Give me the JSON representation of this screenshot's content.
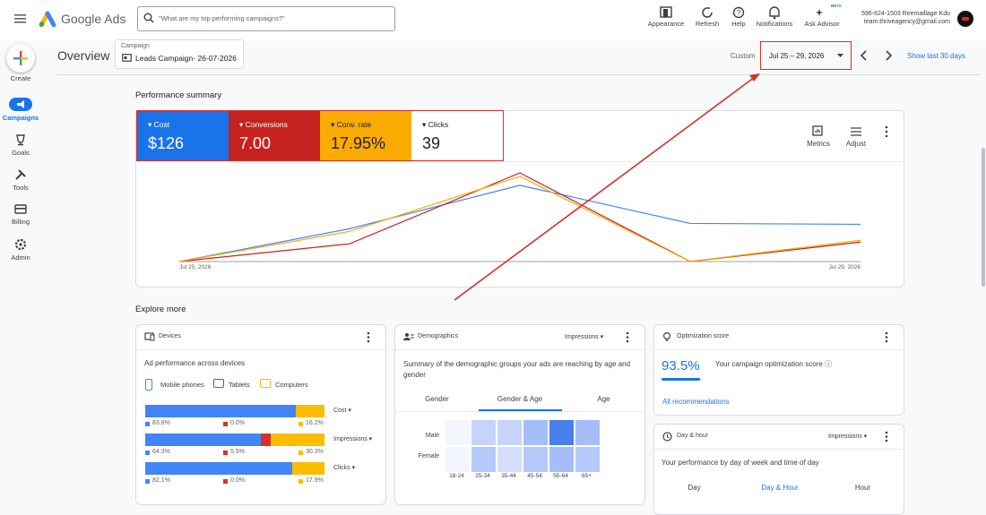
{
  "header": {
    "product": "Google Ads",
    "search_placeholder": "\"What are my top performing campaigns?\"",
    "tools": [
      "Appearance",
      "Refresh",
      "Help",
      "Notifications",
      "Ask Advisor"
    ],
    "beta": "BETA",
    "account_name": "596-624-1503 Reemaillage Kdo",
    "account_email": "team.thriveagency@gmail.com"
  },
  "sidebar": [
    "Create",
    "Campaigns",
    "Goals",
    "Tools",
    "Billing",
    "Admin"
  ],
  "toolbar": {
    "page_title": "Overview",
    "campaign_label": "Campaign",
    "campaign_name": "Leads Campaign- 26-07-2026",
    "range_type": "Custom",
    "date_range": "Jul 25 – 29, 2026",
    "show_last": "Show last 30 days"
  },
  "performance_summary": {
    "title": "Performance summary",
    "metrics": [
      {
        "name": "Cost",
        "value": "$126"
      },
      {
        "name": "Conversions",
        "value": "7.00"
      },
      {
        "name": "Conv. rate",
        "value": "17.95%"
      },
      {
        "name": "Clicks",
        "value": "39"
      }
    ],
    "actions": [
      "Metrics",
      "Adjust"
    ],
    "chart": {
      "x_labels": [
        "Jul 25, 2026",
        "Jul 29, 2026"
      ],
      "ylim": [
        0,
        100
      ],
      "series": [
        {
          "color": "#4285f4",
          "values": [
            0,
            37,
            86,
            43,
            42
          ]
        },
        {
          "color": "#c5221f",
          "values": [
            0,
            20,
            100,
            0,
            22
          ]
        },
        {
          "color": "#f9ab00",
          "values": [
            0,
            34,
            96,
            0,
            24
          ]
        }
      ]
    }
  },
  "explore": {
    "title": "Explore more",
    "devices": {
      "title": "Devices",
      "subtitle": "Ad performance across devices",
      "legend": [
        {
          "name": "Mobile phones",
          "color": "#4285f4"
        },
        {
          "name": "Tablets",
          "color": "#d93025"
        },
        {
          "name": "Computers",
          "color": "#fbbc04"
        }
      ],
      "rows": [
        {
          "metric": "Cost",
          "values": [
            83.8,
            0,
            16.2
          ],
          "value_labels": [
            "83.8%",
            "0.0%",
            "16.2%"
          ]
        },
        {
          "metric": "Impressions",
          "values": [
            64.3,
            5.5,
            30.3
          ],
          "value_labels": [
            "64.3%",
            "5.5%",
            "30.3%"
          ]
        },
        {
          "metric": "Clicks",
          "values": [
            82.1,
            0,
            17.9
          ],
          "value_labels": [
            "82.1%",
            "0.0%",
            "17.9%"
          ]
        }
      ]
    },
    "demographics": {
      "title": "Demographics",
      "metric": "Impressions",
      "description": "Summary of the demographic groups your ads are reaching by age and gender",
      "tabs": [
        "Gender",
        "Gender & Age",
        "Age"
      ],
      "rows": [
        "Male",
        "Female"
      ],
      "columns": [
        "18-24",
        "25-34",
        "35-44",
        "45-54",
        "55-64",
        "65+"
      ]
    },
    "optimization": {
      "title": "Optimization score",
      "score": 93.5,
      "score_label": "93.5%",
      "description": "Your campaign optimization score",
      "link": "All recommendations"
    },
    "day_hour": {
      "title": "Day & hour",
      "metric": "Impressions",
      "description": "Your performance by day of week and time of day",
      "tabs": [
        "Day",
        "Day & Hour",
        "Hour"
      ]
    }
  }
}
